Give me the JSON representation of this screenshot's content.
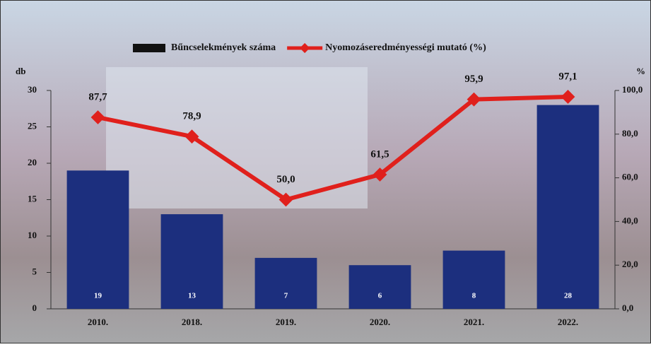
{
  "chart_data": {
    "type": "combo",
    "legend": "top",
    "y_unit": "db",
    "y2_unit": "%",
    "categories": [
      "2010.",
      "2018.",
      "2019.",
      "2020.",
      "2021.",
      "2022."
    ],
    "series": [
      {
        "name": "Bűncselekmények száma",
        "type": "bar",
        "color": "#1c2f7e",
        "values": [
          19,
          13,
          7,
          6,
          8,
          28
        ]
      },
      {
        "name": "Nyomozáseredményességi mutató (%)",
        "type": "line",
        "axis": "y2",
        "color": "#e0201c",
        "values": [
          87.7,
          78.9,
          50.0,
          61.5,
          95.9,
          97.1
        ],
        "value_labels": [
          "87,7",
          "78,9",
          "50,0",
          "61,5",
          "95,9",
          "97,1"
        ]
      }
    ],
    "ylim": [
      0,
      30
    ],
    "yticks": [
      0,
      5,
      10,
      15,
      20,
      25,
      30
    ],
    "y2lim": [
      0,
      100
    ],
    "y2ticks": [
      {
        "value": 0,
        "label": "0,0"
      },
      {
        "value": 20,
        "label": "20,0"
      },
      {
        "value": 40,
        "label": "40,0"
      },
      {
        "value": 60,
        "label": "60,0"
      },
      {
        "value": 80,
        "label": "80,0"
      },
      {
        "value": 100,
        "label": "100,0"
      }
    ]
  }
}
